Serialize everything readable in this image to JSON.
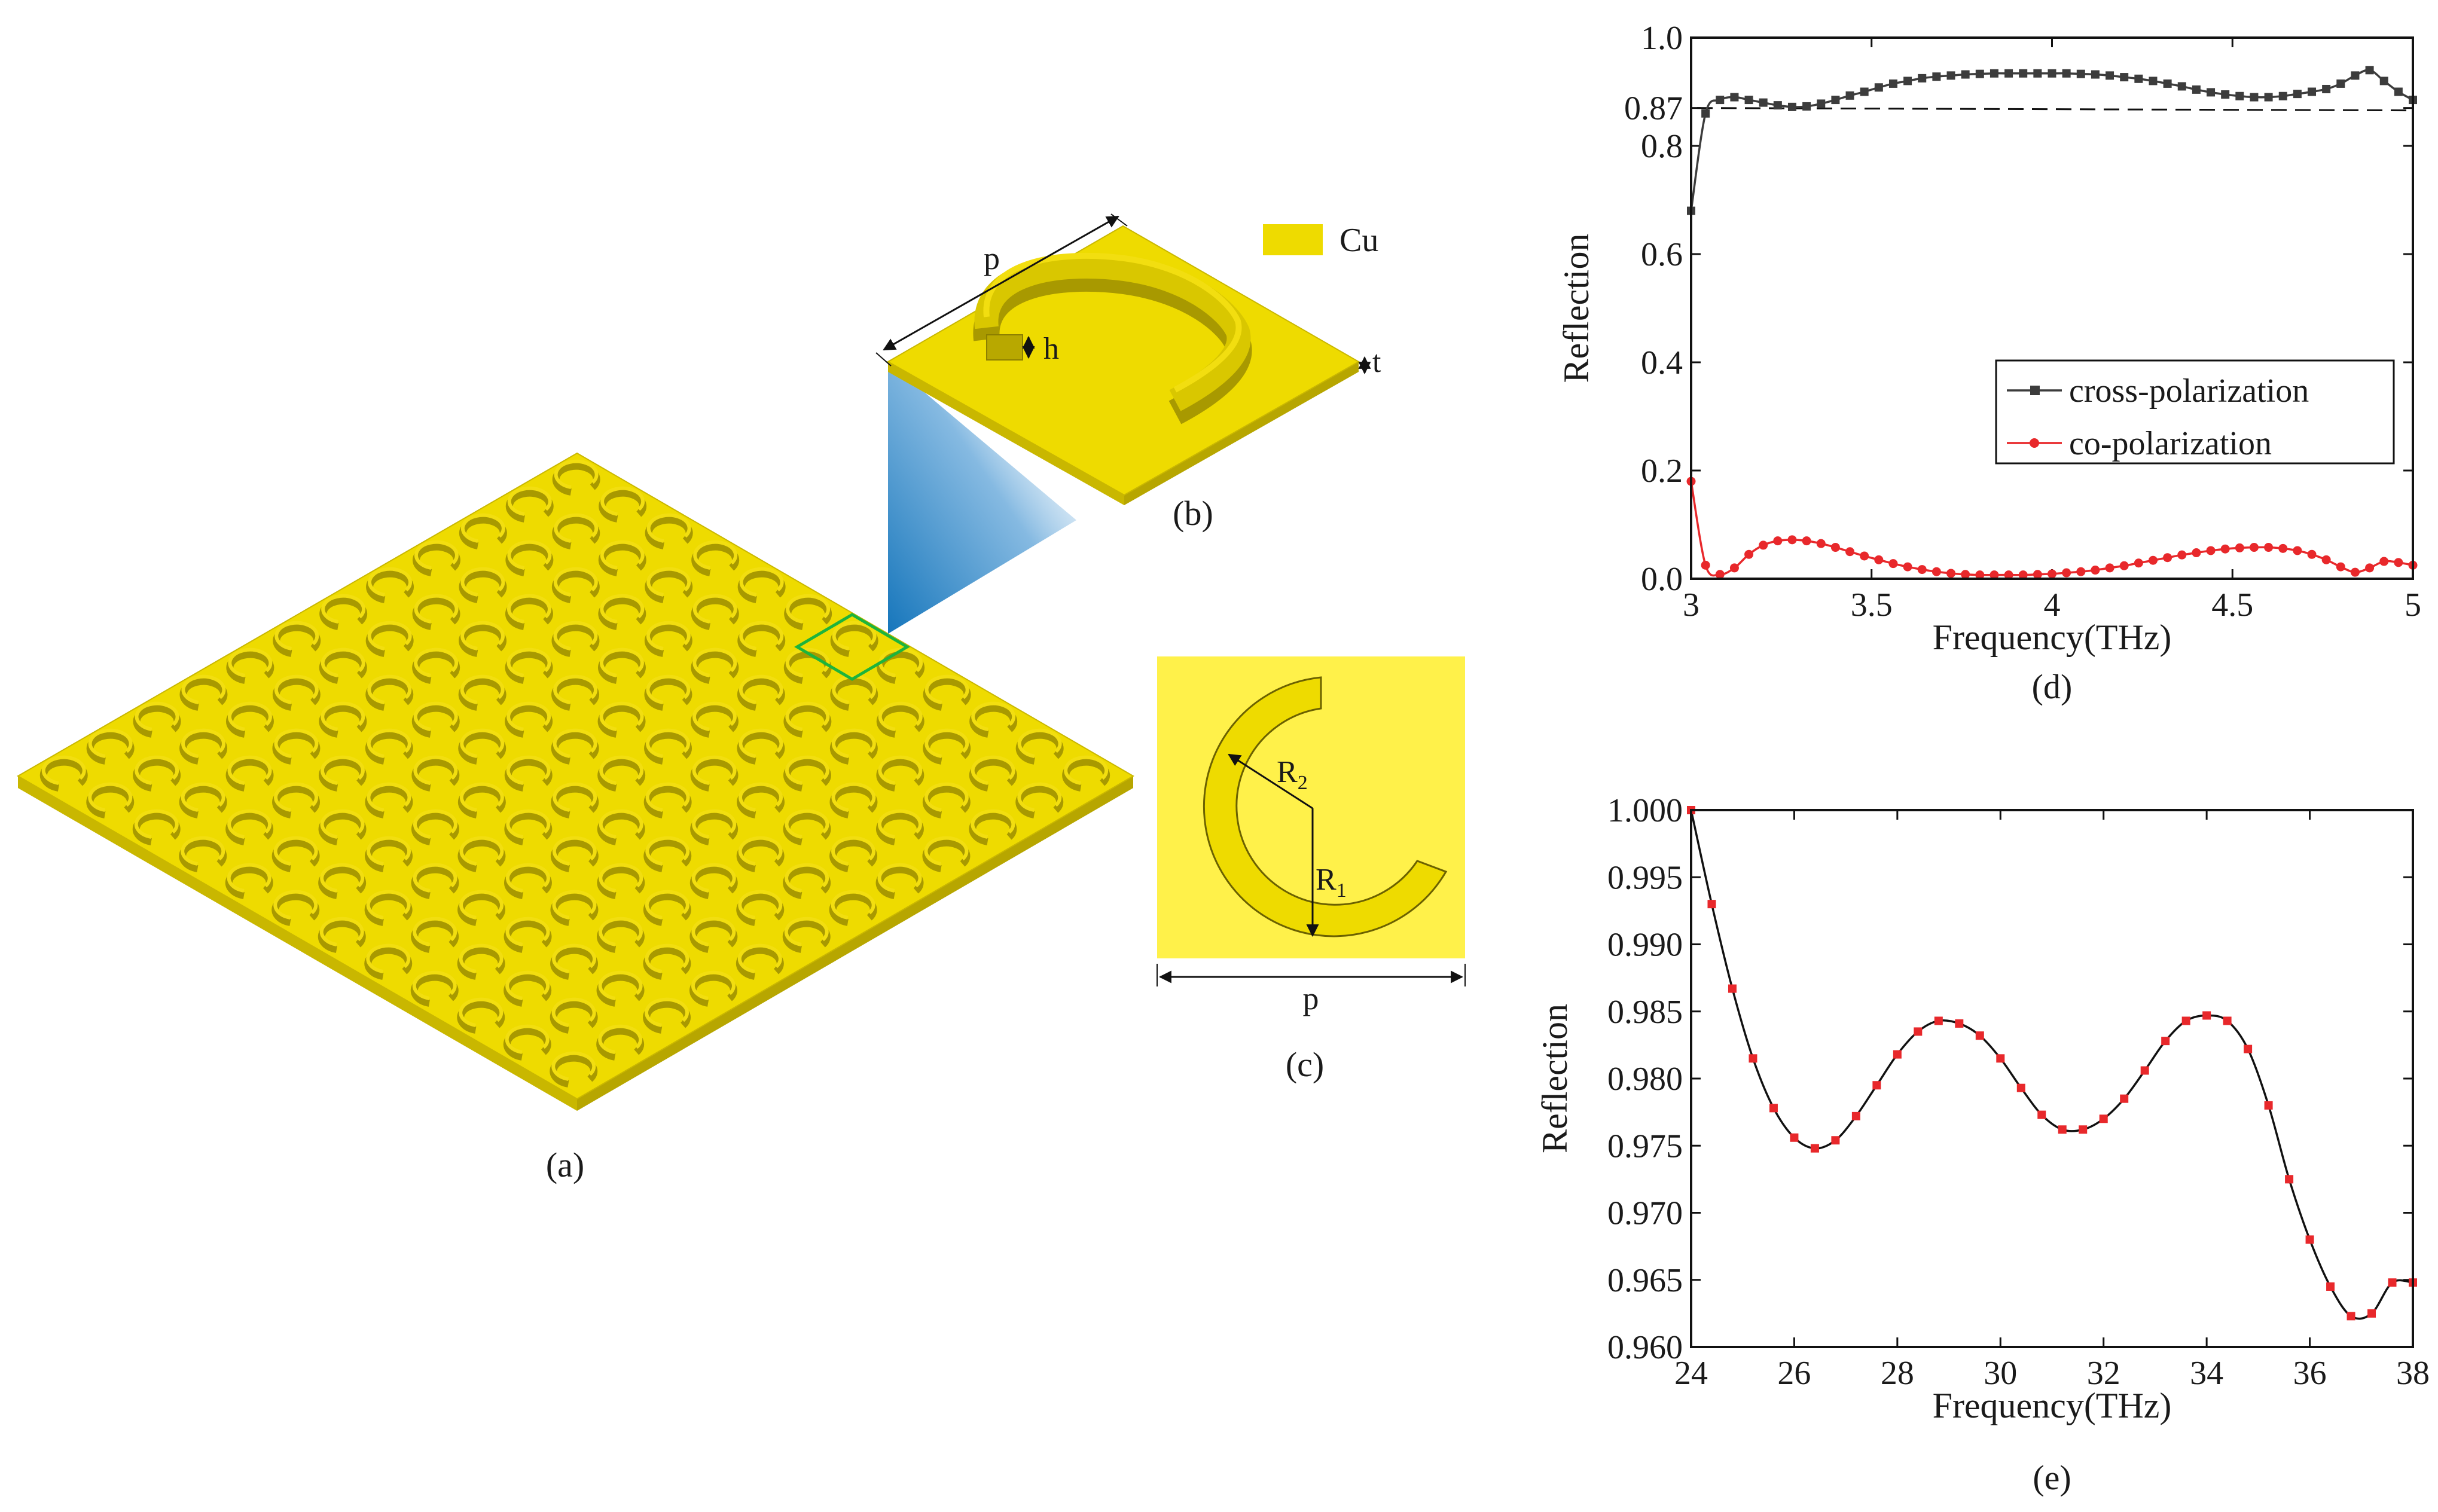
{
  "panels": {
    "a": {
      "label": "(a)"
    },
    "b": {
      "label": "(b)",
      "dim_p": "p",
      "dim_h": "h",
      "dim_t": "t"
    },
    "c": {
      "label": "(c)",
      "dim_p": "p",
      "r2": "R",
      "r2_sub": "2",
      "r1": "R",
      "r1_sub": "1"
    },
    "legend_material": {
      "swatch_color": "#EEDB00",
      "label": "Cu"
    }
  },
  "colors": {
    "gold": "#EEDB00",
    "gold_top": "#F2DE10",
    "gold_side": "#C9B700",
    "gold_light": "#FFF14A",
    "highlight": "#1DB43C",
    "beam": "#0A6FB8",
    "cross": "#3C3C3C",
    "co": "#E8282B"
  },
  "chart_data": [
    {
      "id": "d",
      "type": "line",
      "panel_label": "(d)",
      "xlabel": "Frequency(THz)",
      "ylabel": "Reflection",
      "xlim": [
        3,
        5
      ],
      "ylim": [
        0,
        1.0
      ],
      "xticks": [
        3,
        3.5,
        4,
        4.5,
        5
      ],
      "xtick_labels": [
        "3",
        "3.5",
        "4",
        "4.5",
        "5"
      ],
      "yticks": [
        0,
        0.2,
        0.4,
        0.6,
        0.8,
        0.87,
        1.0
      ],
      "ytick_labels": [
        "0.0",
        "0.2",
        "0.4",
        "0.6",
        "0.8",
        "0.87",
        "1.0"
      ],
      "reference_line": {
        "y": 0.87,
        "style": "dashed"
      },
      "legend": {
        "placement": "center-right",
        "entries": [
          "cross-polarization",
          "co-polarization"
        ]
      },
      "series": [
        {
          "name": "cross-polarization",
          "color": "#3C3C3C",
          "marker": "square",
          "x": [
            3.0,
            3.04,
            3.08,
            3.12,
            3.16,
            3.2,
            3.24,
            3.28,
            3.32,
            3.36,
            3.4,
            3.44,
            3.48,
            3.52,
            3.56,
            3.6,
            3.64,
            3.68,
            3.72,
            3.76,
            3.8,
            3.84,
            3.88,
            3.92,
            3.96,
            4.0,
            4.04,
            4.08,
            4.12,
            4.16,
            4.2,
            4.24,
            4.28,
            4.32,
            4.36,
            4.4,
            4.44,
            4.48,
            4.52,
            4.56,
            4.6,
            4.64,
            4.68,
            4.72,
            4.76,
            4.8,
            4.84,
            4.88,
            4.92,
            4.96,
            5.0
          ],
          "y": [
            0.68,
            0.86,
            0.885,
            0.89,
            0.885,
            0.88,
            0.875,
            0.872,
            0.873,
            0.878,
            0.885,
            0.893,
            0.9,
            0.908,
            0.915,
            0.92,
            0.925,
            0.928,
            0.93,
            0.932,
            0.933,
            0.934,
            0.934,
            0.934,
            0.934,
            0.934,
            0.934,
            0.933,
            0.932,
            0.93,
            0.927,
            0.924,
            0.92,
            0.915,
            0.91,
            0.904,
            0.899,
            0.895,
            0.892,
            0.89,
            0.89,
            0.892,
            0.896,
            0.9,
            0.905,
            0.915,
            0.93,
            0.94,
            0.92,
            0.9,
            0.885
          ]
        },
        {
          "name": "co-polarization",
          "color": "#E8282B",
          "marker": "circle",
          "x": [
            3.0,
            3.04,
            3.08,
            3.12,
            3.16,
            3.2,
            3.24,
            3.28,
            3.32,
            3.36,
            3.4,
            3.44,
            3.48,
            3.52,
            3.56,
            3.6,
            3.64,
            3.68,
            3.72,
            3.76,
            3.8,
            3.84,
            3.88,
            3.92,
            3.96,
            4.0,
            4.04,
            4.08,
            4.12,
            4.16,
            4.2,
            4.24,
            4.28,
            4.32,
            4.36,
            4.4,
            4.44,
            4.48,
            4.52,
            4.56,
            4.6,
            4.64,
            4.68,
            4.72,
            4.76,
            4.8,
            4.84,
            4.88,
            4.92,
            4.96,
            5.0
          ],
          "y": [
            0.18,
            0.025,
            0.008,
            0.02,
            0.045,
            0.062,
            0.07,
            0.072,
            0.07,
            0.065,
            0.058,
            0.05,
            0.042,
            0.035,
            0.028,
            0.022,
            0.017,
            0.013,
            0.01,
            0.008,
            0.007,
            0.007,
            0.007,
            0.007,
            0.008,
            0.009,
            0.011,
            0.013,
            0.016,
            0.02,
            0.024,
            0.029,
            0.034,
            0.039,
            0.044,
            0.048,
            0.052,
            0.055,
            0.057,
            0.058,
            0.058,
            0.056,
            0.052,
            0.045,
            0.035,
            0.022,
            0.012,
            0.02,
            0.032,
            0.03,
            0.025
          ]
        }
      ]
    },
    {
      "id": "e",
      "type": "line",
      "panel_label": "(e)",
      "xlabel": "Frequency(THz)",
      "ylabel": "Reflection",
      "xlim": [
        24,
        38
      ],
      "ylim": [
        0.96,
        1.0
      ],
      "xticks": [
        24,
        26,
        28,
        30,
        32,
        34,
        36,
        38
      ],
      "xtick_labels": [
        "24",
        "26",
        "28",
        "30",
        "32",
        "34",
        "36",
        "38"
      ],
      "yticks": [
        0.96,
        0.965,
        0.97,
        0.975,
        0.98,
        0.985,
        0.99,
        0.995,
        1.0
      ],
      "ytick_labels": [
        "0.960",
        "0.965",
        "0.970",
        "0.975",
        "0.980",
        "0.985",
        "0.990",
        "0.995",
        "1.000"
      ],
      "series": [
        {
          "name": "reflection",
          "color": "#111111",
          "marker": "square",
          "marker_color": "#E8282B",
          "x": [
            24.0,
            24.4,
            24.8,
            25.2,
            25.6,
            26.0,
            26.4,
            26.8,
            27.2,
            27.6,
            28.0,
            28.4,
            28.8,
            29.2,
            29.6,
            30.0,
            30.4,
            30.8,
            31.2,
            31.6,
            32.0,
            32.4,
            32.8,
            33.2,
            33.6,
            34.0,
            34.4,
            34.8,
            35.2,
            35.6,
            36.0,
            36.4,
            36.8,
            37.2,
            37.6,
            38.0
          ],
          "y": [
            1.0,
            0.993,
            0.9867,
            0.9815,
            0.9778,
            0.9756,
            0.9748,
            0.9754,
            0.9772,
            0.9795,
            0.9818,
            0.9835,
            0.9843,
            0.9841,
            0.9832,
            0.9815,
            0.9793,
            0.9773,
            0.9762,
            0.9762,
            0.977,
            0.9785,
            0.9806,
            0.9828,
            0.9843,
            0.9847,
            0.9843,
            0.9822,
            0.978,
            0.9725,
            0.968,
            0.9645,
            0.9623,
            0.9625,
            0.9648,
            0.9648
          ]
        }
      ]
    }
  ]
}
